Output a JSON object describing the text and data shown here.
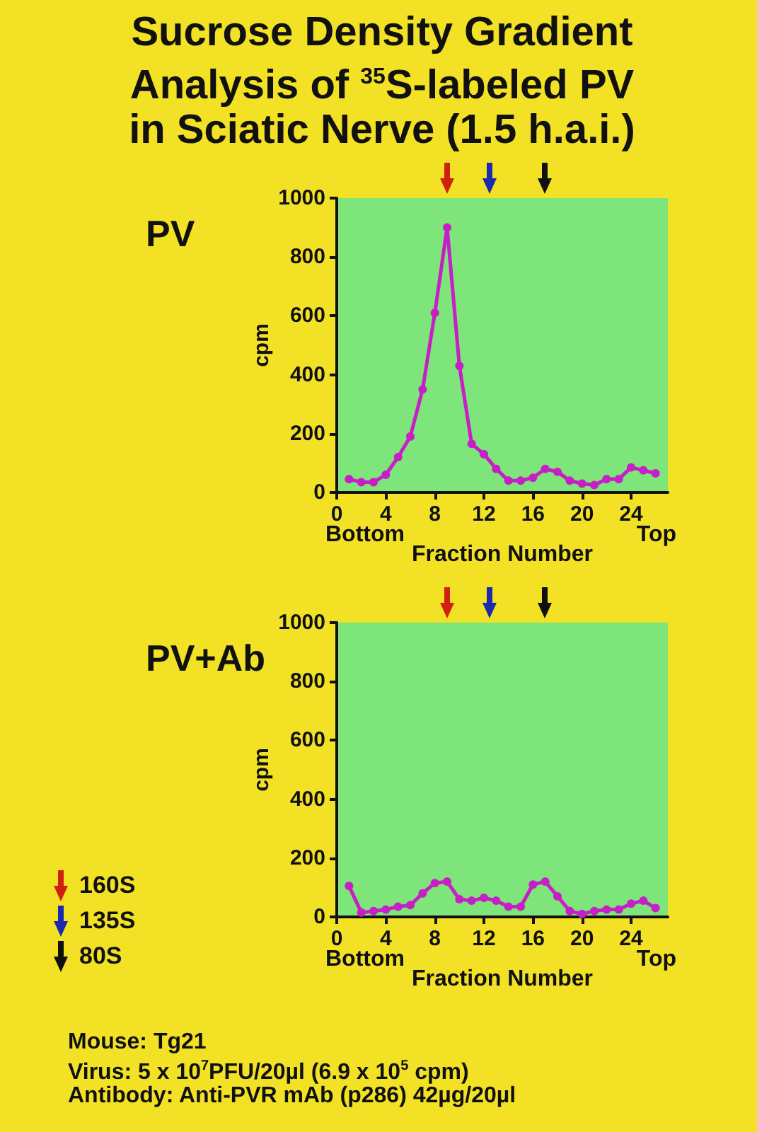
{
  "chart_data": [
    {
      "type": "line",
      "title": "Sucrose Density Gradient Analysis of $^{35}$S-labeled PV in Sciatic Nerve (1.5 h.a.i.)",
      "subtitle": "PV",
      "xlabel": "Fraction Number",
      "ylabel": "cpm",
      "annotations": [
        "Bottom",
        "Top"
      ],
      "x": [
        1,
        2,
        3,
        4,
        5,
        6,
        7,
        8,
        9,
        10,
        11,
        12,
        13,
        14,
        15,
        16,
        17,
        18,
        19,
        20,
        21,
        22,
        23,
        24,
        25,
        26
      ],
      "series": [
        {
          "color": "#c81ec8",
          "values": [
            45,
            35,
            35,
            60,
            120,
            190,
            350,
            610,
            900,
            430,
            165,
            130,
            80,
            40,
            40,
            50,
            80,
            70,
            40,
            30,
            25,
            45,
            45,
            85,
            75,
            65
          ]
        }
      ],
      "xlim": [
        0,
        27
      ],
      "ylim": [
        0,
        1000
      ],
      "xticks": [
        0,
        4,
        8,
        12,
        16,
        20,
        24
      ],
      "yticks": [
        0,
        200,
        400,
        600,
        800,
        1000
      ],
      "marker": "circle",
      "grid": false
    },
    {
      "type": "line",
      "subtitle": "PV+Ab",
      "xlabel": "Fraction Number",
      "ylabel": "cpm",
      "annotations": [
        "Bottom",
        "Top",
        "Mouse: Tg21",
        "Virus: 5 x 10$^{7}$PFU/20µl (6.9 x 10$^{5}$ cpm)",
        "Antibody: Anti-PVR mAb (p286)  42µg/20µl",
        "160S",
        "135S",
        "80S"
      ],
      "x": [
        1,
        2,
        3,
        4,
        5,
        6,
        7,
        8,
        9,
        10,
        11,
        12,
        13,
        14,
        15,
        16,
        17,
        18,
        19,
        20,
        21,
        22,
        23,
        24,
        25,
        26
      ],
      "series": [
        {
          "color": "#c81ec8",
          "values": [
            105,
            15,
            20,
            25,
            35,
            40,
            80,
            115,
            120,
            60,
            55,
            65,
            55,
            35,
            35,
            110,
            120,
            70,
            20,
            10,
            20,
            25,
            25,
            45,
            55,
            30
          ]
        }
      ],
      "xlim": [
        0,
        27
      ],
      "ylim": [
        0,
        1000
      ],
      "xticks": [
        0,
        4,
        8,
        12,
        16,
        20,
        24
      ],
      "yticks": [
        0,
        200,
        400,
        600,
        800,
        1000
      ],
      "marker": "circle",
      "grid": false
    }
  ]
}
